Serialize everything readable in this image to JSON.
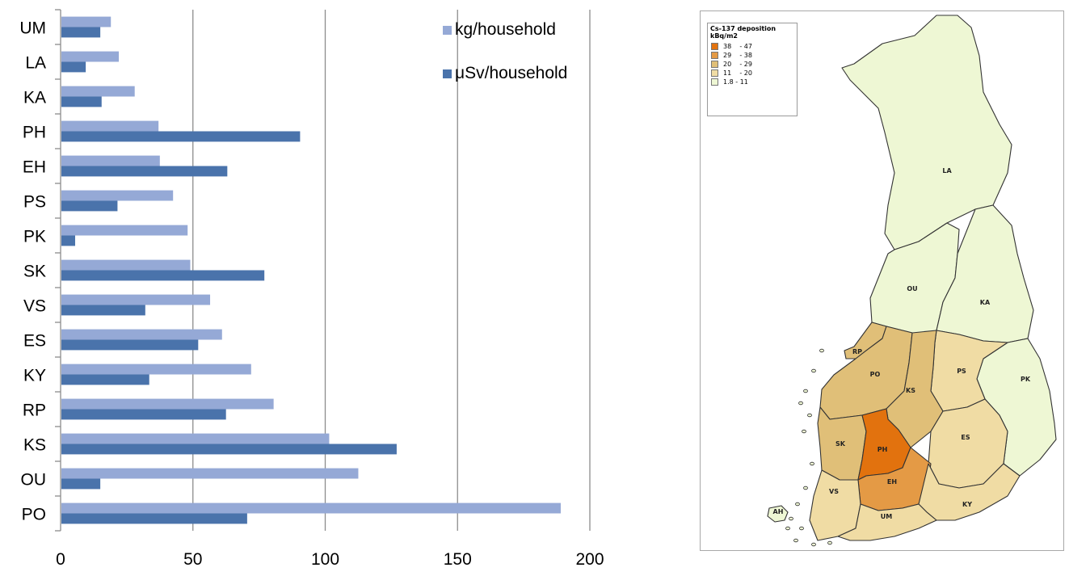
{
  "chart_data": [
    {
      "type": "bar",
      "orientation": "horizontal",
      "categories": [
        "PO",
        "OU",
        "KS",
        "RP",
        "KY",
        "ES",
        "VS",
        "SK",
        "PK",
        "PS",
        "EH",
        "PH",
        "KA",
        "LA",
        "UM"
      ],
      "series": [
        {
          "name": "kg/household",
          "color": "#95a9d6",
          "values": [
            189,
            112.5,
            101.5,
            80.5,
            72,
            61,
            56.5,
            49,
            48,
            42.5,
            37.5,
            37,
            28,
            22,
            19
          ]
        },
        {
          "name": "μSv/household",
          "color": "#4a73ab",
          "values": [
            70.5,
            15,
            127,
            62.5,
            33.5,
            52,
            32,
            77,
            5.5,
            21.5,
            63,
            90.5,
            15.5,
            9.5,
            15
          ]
        }
      ],
      "xlim": [
        0,
        200
      ],
      "xticks": [
        "0",
        "50",
        "100",
        "150",
        "200"
      ],
      "grid": true,
      "legend": "top-right"
    },
    {
      "type": "map",
      "legend_title": "Cs-137 deposition",
      "legend_unit": "kBq/m2",
      "legend_items": [
        {
          "range": "38    - 47",
          "color": "#e2720e"
        },
        {
          "range": "29    - 38",
          "color": "#e49a45"
        },
        {
          "range": "20    - 29",
          "color": "#e0bf78"
        },
        {
          "range": "11    - 20",
          "color": "#f0dca4"
        },
        {
          "range": "1.8 - 11",
          "color": "#eef7d4"
        }
      ],
      "regions": [
        "LA",
        "OU",
        "KA",
        "RP",
        "PO",
        "KS",
        "PS",
        "PK",
        "SK",
        "PH",
        "ES",
        "EH",
        "VS",
        "KY",
        "UM",
        "AH"
      ]
    }
  ]
}
